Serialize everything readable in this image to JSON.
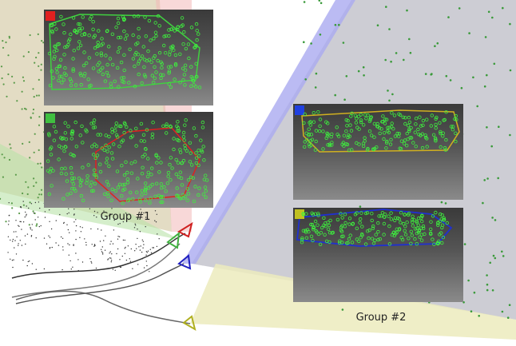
{
  "groups": [
    {
      "label": "Group #1"
    },
    {
      "label": "Group #2"
    }
  ]
}
